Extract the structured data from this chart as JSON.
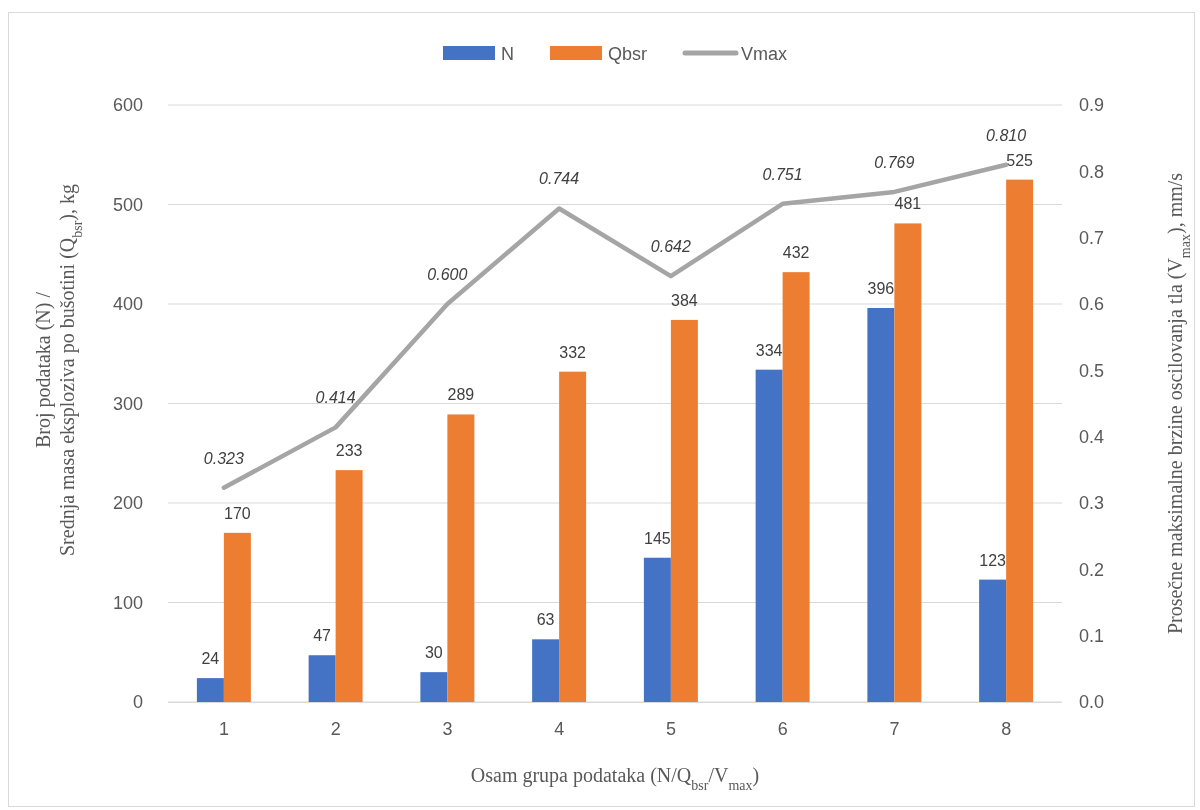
{
  "chart_data": {
    "type": "bar",
    "categories": [
      "1",
      "2",
      "3",
      "4",
      "5",
      "6",
      "7",
      "8"
    ],
    "series": [
      {
        "name": "N",
        "color": "#4472c4",
        "values": [
          24,
          47,
          30,
          63,
          145,
          334,
          396,
          123
        ],
        "value_labels": [
          "24",
          "47",
          "30",
          "63",
          "145",
          "334",
          "396",
          "123"
        ]
      },
      {
        "name": "Qbsr",
        "color": "#ed7d31",
        "values": [
          170,
          233,
          289,
          332,
          384,
          432,
          481,
          525
        ],
        "value_labels": [
          "170",
          "233",
          "289",
          "332",
          "384",
          "432",
          "481",
          "525"
        ]
      },
      {
        "name": "Vmax",
        "type": "line",
        "axis": "y2",
        "color": "#a5a5a5",
        "values": [
          0.323,
          0.414,
          0.6,
          0.744,
          0.642,
          0.751,
          0.769,
          0.81
        ],
        "value_labels": [
          "0.323",
          "0.414",
          "0.600",
          "0.744",
          "0.642",
          "0.751",
          "0.769",
          "0.810"
        ]
      }
    ],
    "xlabel": "Osam grupa podataka (N/Q$_{bsr}$/V$_{max}$)",
    "ylabel": "Broj podataka (N) /\nSrednja masa eksploziva po bušotini (Q$_{bsr}$), kg",
    "y2label": "Prosečne maksimalne brzine oscilovanja tla (V$_{max}$), mm/s",
    "ylim": [
      0,
      600
    ],
    "yticks": [
      0,
      100,
      200,
      300,
      400,
      500,
      600
    ],
    "y2lim": [
      0,
      0.9
    ],
    "y2ticks": [
      {
        "value": 0,
        "label": "0.0"
      },
      0.1,
      0.2,
      0.3,
      0.4,
      0.5,
      0.6,
      0.7,
      0.8,
      0.9
    ],
    "grid": "y",
    "legend": "top"
  }
}
